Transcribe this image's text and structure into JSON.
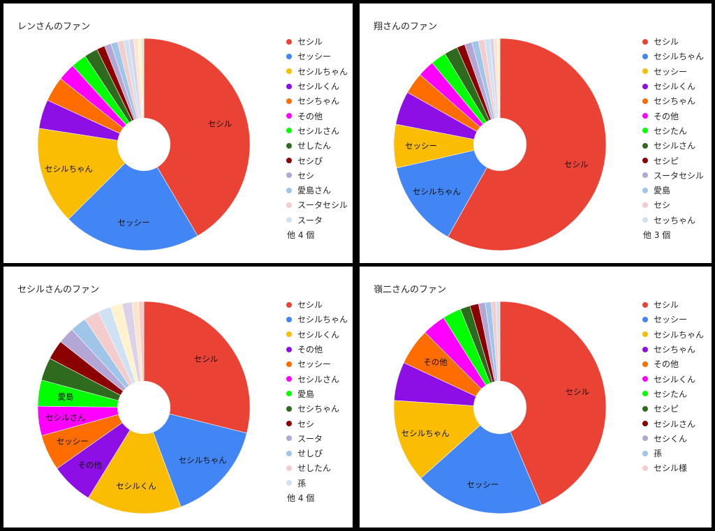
{
  "chart_data": [
    {
      "type": "pie",
      "donut": true,
      "title": "レンさんのファン",
      "slices": [
        {
          "label": "セシル",
          "value": 40.5,
          "color": "#EA4335",
          "show_label": true
        },
        {
          "label": "セッシー",
          "value": 20.5,
          "color": "#4285F4",
          "show_label": true
        },
        {
          "label": "セシルちゃん",
          "value": 14.5,
          "color": "#FBBC04",
          "show_label": true
        },
        {
          "label": "セシルくん",
          "value": 4.3,
          "color": "#8E0FE6",
          "show_label": false
        },
        {
          "label": "セシちゃん",
          "value": 3.7,
          "color": "#FF6D01",
          "show_label": false
        },
        {
          "label": "その他",
          "value": 2.6,
          "color": "#FF00FF",
          "show_label": false
        },
        {
          "label": "セシルさん",
          "value": 2.3,
          "color": "#00FF00",
          "show_label": false
        },
        {
          "label": "せしたん",
          "value": 2.0,
          "color": "#2E6B1E",
          "show_label": false
        },
        {
          "label": "セシぴ",
          "value": 1.2,
          "color": "#8B0000",
          "show_label": false
        },
        {
          "label": "セシ",
          "value": 1.0,
          "color": "#B4A7D6",
          "show_label": false
        },
        {
          "label": "愛島さん",
          "value": 1.0,
          "color": "#9FC5E8",
          "show_label": false
        },
        {
          "label": "スータセシル",
          "value": 0.9,
          "color": "#F4CCCC",
          "show_label": false
        },
        {
          "label": "スータ",
          "value": 0.8,
          "color": "#CFE2F3",
          "show_label": false
        },
        {
          "label": "",
          "value": 0.7,
          "color": "#D9D2E9",
          "show_label": false
        },
        {
          "label": "",
          "value": 0.6,
          "color": "#FCE5CD",
          "show_label": false
        },
        {
          "label": "",
          "value": 0.5,
          "color": "#FFF2CC",
          "show_label": false
        },
        {
          "label": "",
          "value": 0.4,
          "color": "#D9EAD3",
          "show_label": false
        }
      ],
      "legend_position": "right",
      "legend_more": "他 4 個"
    },
    {
      "type": "pie",
      "donut": true,
      "title": "翔さんのファン",
      "slices": [
        {
          "label": "セシル",
          "value": 57.0,
          "color": "#EA4335",
          "show_label": true
        },
        {
          "label": "セシルちゃん",
          "value": 13.0,
          "color": "#4285F4",
          "show_label": true
        },
        {
          "label": "セッシー",
          "value": 6.5,
          "color": "#FBBC04",
          "show_label": true
        },
        {
          "label": "セシルくん",
          "value": 5.0,
          "color": "#8E0FE6",
          "show_label": false
        },
        {
          "label": "セシちゃん",
          "value": 3.2,
          "color": "#FF6D01",
          "show_label": false
        },
        {
          "label": "その他",
          "value": 2.5,
          "color": "#FF00FF",
          "show_label": false
        },
        {
          "label": "セシたん",
          "value": 2.3,
          "color": "#00FF00",
          "show_label": false
        },
        {
          "label": "セシルさん",
          "value": 2.0,
          "color": "#2E6B1E",
          "show_label": false
        },
        {
          "label": "セシピ",
          "value": 1.2,
          "color": "#8B0000",
          "show_label": false
        },
        {
          "label": "スータセシル",
          "value": 1.1,
          "color": "#B4A7D6",
          "show_label": false
        },
        {
          "label": "愛島",
          "value": 1.0,
          "color": "#9FC5E8",
          "show_label": false
        },
        {
          "label": "セシ",
          "value": 0.9,
          "color": "#F4CCCC",
          "show_label": false
        },
        {
          "label": "セッちゃん",
          "value": 0.8,
          "color": "#CFE2F3",
          "show_label": false
        },
        {
          "label": "",
          "value": 0.6,
          "color": "#D9D2E9",
          "show_label": false
        },
        {
          "label": "",
          "value": 0.5,
          "color": "#FCE5CD",
          "show_label": false
        },
        {
          "label": "",
          "value": 0.4,
          "color": "#FFF2CC",
          "show_label": false
        }
      ],
      "legend_position": "right",
      "legend_more": "他 3 個"
    },
    {
      "type": "pie",
      "donut": true,
      "title": "セシルさんのファン",
      "slices": [
        {
          "label": "セシル",
          "value": 29.0,
          "color": "#EA4335",
          "show_label": true
        },
        {
          "label": "セシルちゃん",
          "value": 15.5,
          "color": "#4285F4",
          "show_label": true
        },
        {
          "label": "セシルくん",
          "value": 14.5,
          "color": "#FBBC04",
          "show_label": true
        },
        {
          "label": "その他",
          "value": 6.5,
          "color": "#8E0FE6",
          "show_label": true
        },
        {
          "label": "セッシー",
          "value": 5.5,
          "color": "#FF6D01",
          "show_label": true
        },
        {
          "label": "セシルさん",
          "value": 4.5,
          "color": "#FF00FF",
          "show_label": true
        },
        {
          "label": "愛島",
          "value": 4.0,
          "color": "#00FF00",
          "show_label": true
        },
        {
          "label": "セシちゃん",
          "value": 3.5,
          "color": "#2E6B1E",
          "show_label": false
        },
        {
          "label": "セシ",
          "value": 3.0,
          "color": "#8B0000",
          "show_label": false
        },
        {
          "label": "スータ",
          "value": 2.5,
          "color": "#B4A7D6",
          "show_label": false
        },
        {
          "label": "せしぴ",
          "value": 2.5,
          "color": "#9FC5E8",
          "show_label": false
        },
        {
          "label": "せしたん",
          "value": 2.3,
          "color": "#F4CCCC",
          "show_label": false
        },
        {
          "label": "孫",
          "value": 2.0,
          "color": "#CFE2F3",
          "show_label": false
        },
        {
          "label": "",
          "value": 1.8,
          "color": "#FFF2CC",
          "show_label": false
        },
        {
          "label": "",
          "value": 1.5,
          "color": "#D9D2E9",
          "show_label": false
        },
        {
          "label": "",
          "value": 1.0,
          "color": "#FCE5CD",
          "show_label": false
        },
        {
          "label": "",
          "value": 0.8,
          "color": "#F4CCCC",
          "show_label": false
        }
      ],
      "legend_position": "right",
      "legend_more": "他 4 個"
    },
    {
      "type": "pie",
      "donut": true,
      "title": "嶺二さんのファン",
      "slices": [
        {
          "label": "セシル",
          "value": 43.0,
          "color": "#EA4335",
          "show_label": true
        },
        {
          "label": "セッシー",
          "value": 19.5,
          "color": "#4285F4",
          "show_label": true
        },
        {
          "label": "セシルちゃん",
          "value": 12.5,
          "color": "#FBBC04",
          "show_label": true
        },
        {
          "label": "セシちゃん",
          "value": 5.8,
          "color": "#8E0FE6",
          "show_label": false
        },
        {
          "label": "その他",
          "value": 5.5,
          "color": "#FF6D01",
          "show_label": true
        },
        {
          "label": "セシルくん",
          "value": 3.5,
          "color": "#FF00FF",
          "show_label": false
        },
        {
          "label": "セシたん",
          "value": 2.8,
          "color": "#00FF00",
          "show_label": false
        },
        {
          "label": "セシピ",
          "value": 1.5,
          "color": "#2E6B1E",
          "show_label": false
        },
        {
          "label": "セシルさん",
          "value": 1.3,
          "color": "#8B0000",
          "show_label": false
        },
        {
          "label": "セシくん",
          "value": 1.0,
          "color": "#B4A7D6",
          "show_label": false
        },
        {
          "label": "孫",
          "value": 0.9,
          "color": "#9FC5E8",
          "show_label": false
        },
        {
          "label": "セシル様",
          "value": 0.7,
          "color": "#F4CCCC",
          "show_label": false
        },
        {
          "label": "",
          "value": 0.6,
          "color": "#CFE2F3",
          "show_label": false
        }
      ],
      "legend_position": "right",
      "legend_more": ""
    }
  ]
}
